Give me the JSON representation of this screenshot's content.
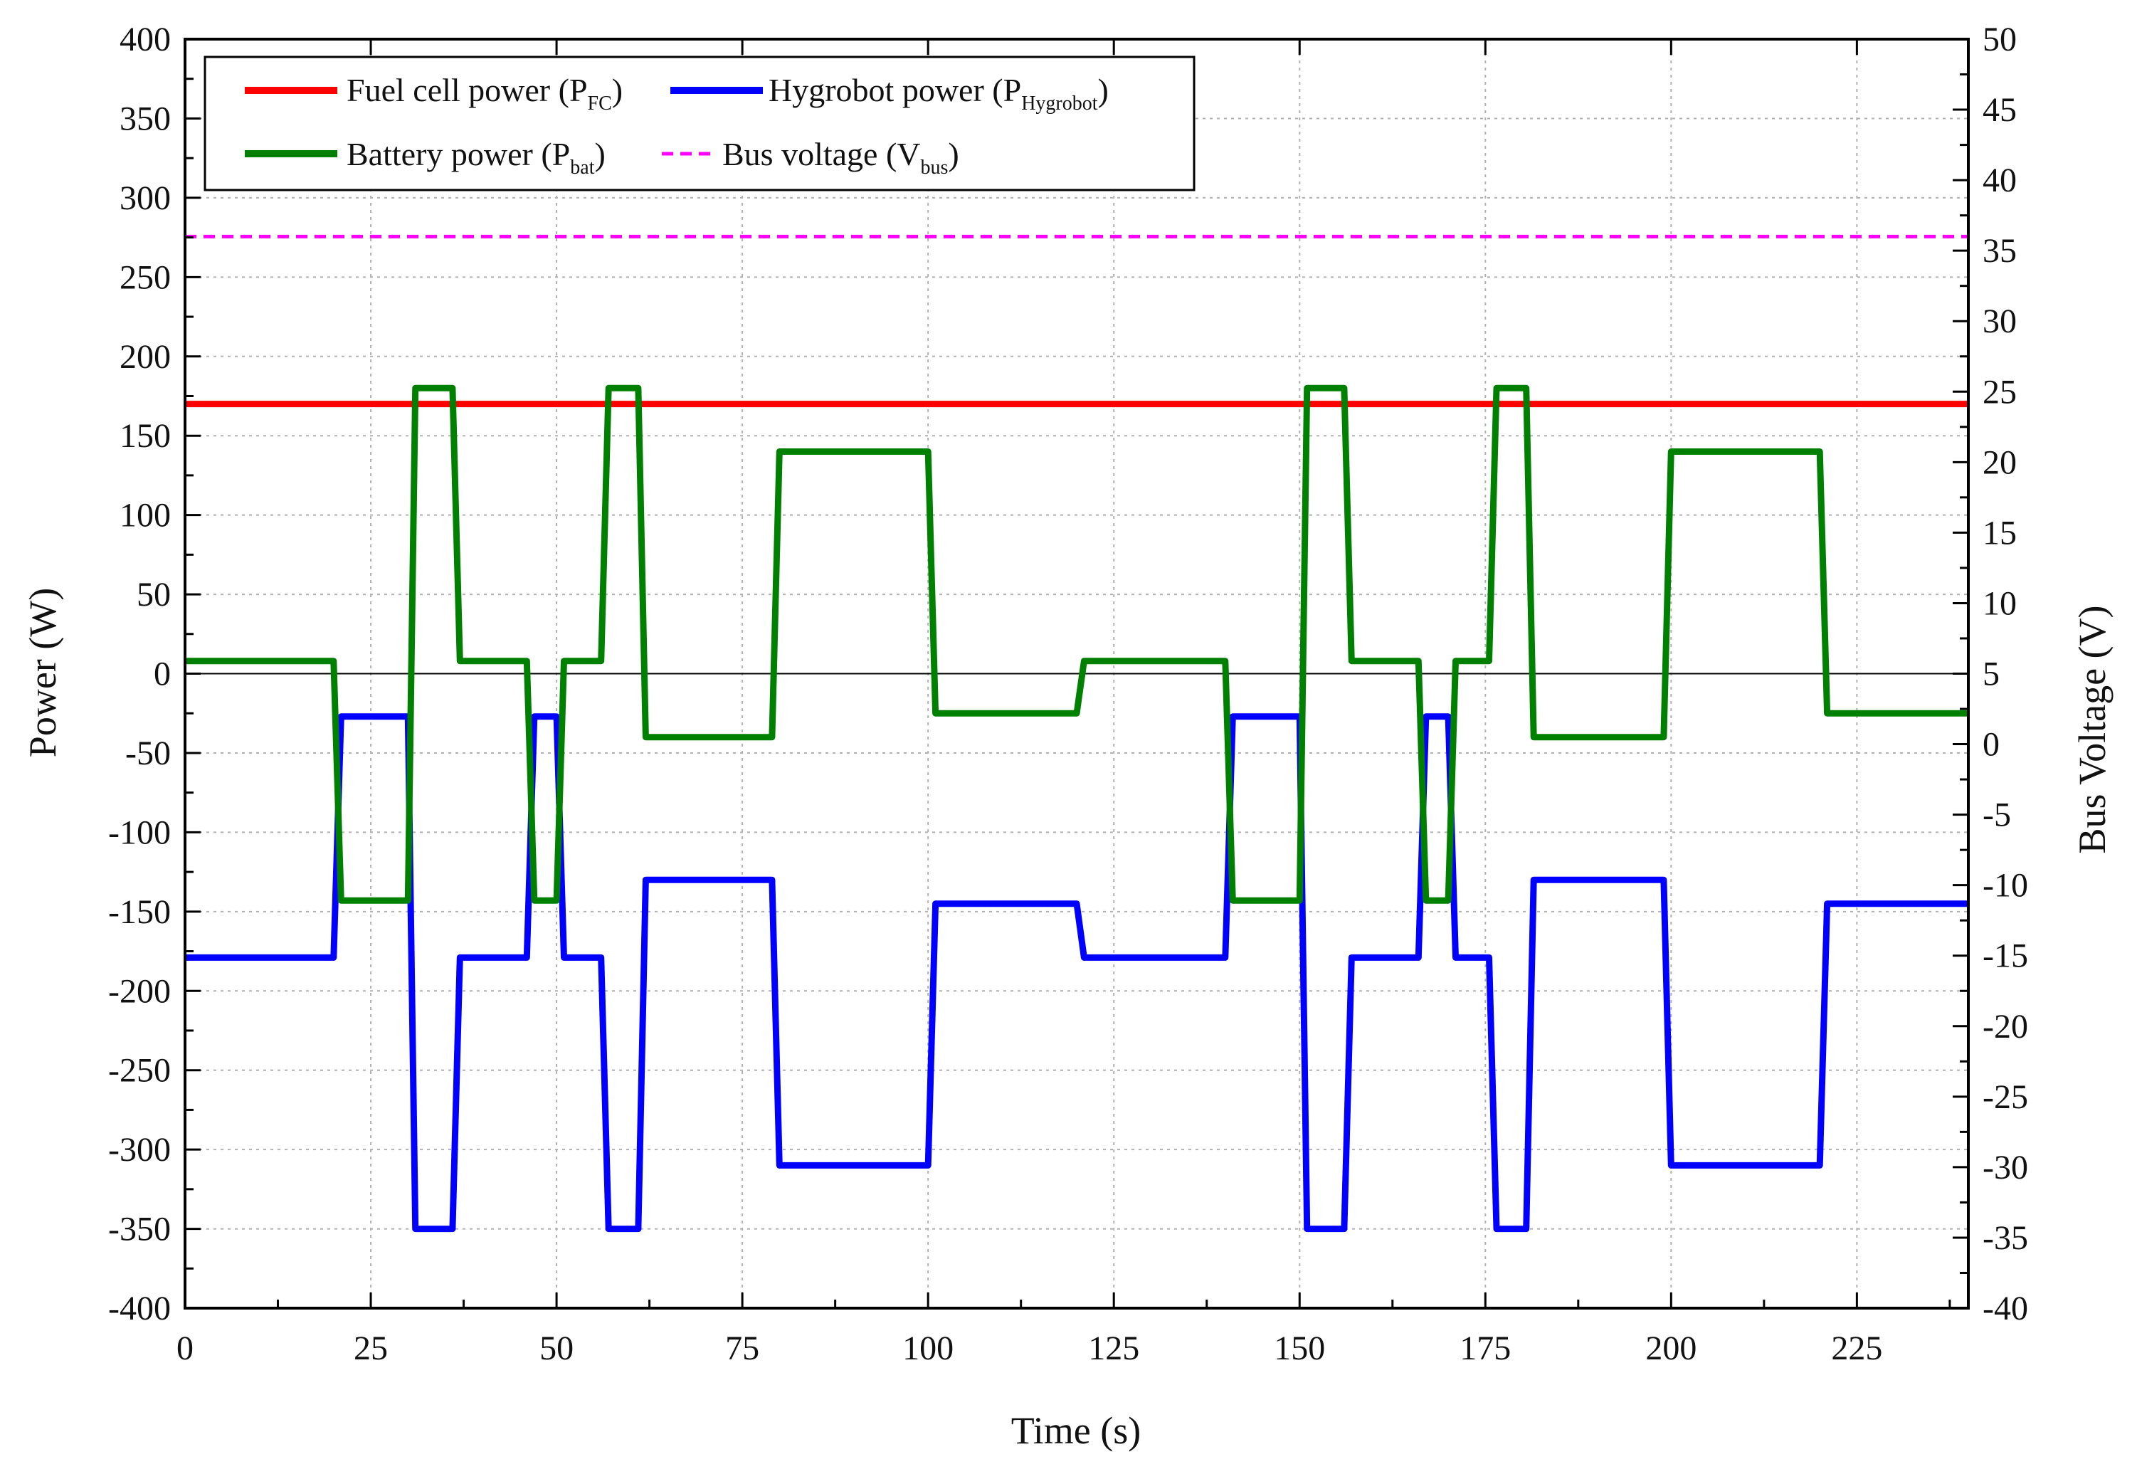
{
  "chart_data": {
    "type": "line",
    "title": "",
    "xlabel": "Time (s)",
    "ylabel": "Power (W)",
    "y2label": "Bus Voltage (V)",
    "xlim": [
      0,
      240
    ],
    "ylim": [
      -400,
      400
    ],
    "y2lim": [
      -40,
      50
    ],
    "x_ticks": [
      0,
      25,
      50,
      75,
      100,
      125,
      150,
      175,
      200,
      225
    ],
    "y_ticks": [
      -400,
      -350,
      -300,
      -250,
      -200,
      -150,
      -100,
      -50,
      0,
      50,
      100,
      150,
      200,
      250,
      300,
      350,
      400
    ],
    "y2_ticks": [
      -40,
      -35,
      -30,
      -25,
      -20,
      -15,
      -10,
      -5,
      0,
      5,
      10,
      15,
      20,
      25,
      30,
      35,
      40,
      45,
      50
    ],
    "grid": true,
    "legend_position": "top-left",
    "legend_title_rows": [
      [
        {
          "series": "fc",
          "label": "Fuel cell power (P",
          "sub": "FC",
          "close": ")"
        },
        {
          "series": "hyg",
          "label": "Hygrobot power (P",
          "sub": "Hygrobot",
          "close": ")"
        }
      ],
      [
        {
          "series": "bat",
          "label": "Battery power (P",
          "sub": "bat",
          "close": ")"
        },
        {
          "series": "vbus",
          "label": "Bus voltage (V",
          "sub": "bus",
          "close": ")"
        }
      ]
    ],
    "series": [
      {
        "id": "fc",
        "name": "Fuel cell power (PFC)",
        "axis": "left",
        "color": "#ff0000",
        "style": "solid",
        "x": [
          0,
          240
        ],
        "y": [
          170,
          170
        ]
      },
      {
        "id": "hyg",
        "name": "Hygrobot power (PHygrobot)",
        "axis": "left",
        "color": "#0000ff",
        "style": "solid",
        "x": [
          0,
          20,
          21,
          30,
          31,
          36,
          37,
          46,
          47,
          50,
          51,
          56,
          57,
          61,
          62,
          79,
          80,
          100,
          101,
          120,
          121,
          140,
          141,
          150,
          151,
          156,
          157,
          166,
          167,
          170,
          171,
          175.5,
          176.5,
          180.5,
          181.5,
          199,
          200,
          220,
          221,
          240
        ],
        "y": [
          -179,
          -179,
          -27,
          -27,
          -350,
          -350,
          -179,
          -179,
          -27,
          -27,
          -179,
          -179,
          -350,
          -350,
          -130,
          -130,
          -310,
          -310,
          -145,
          -145,
          -179,
          -179,
          -27,
          -27,
          -350,
          -350,
          -179,
          -179,
          -27,
          -27,
          -179,
          -179,
          -350,
          -350,
          -130,
          -130,
          -310,
          -310,
          -145,
          -145
        ]
      },
      {
        "id": "bat",
        "name": "Battery power (Pbat)",
        "axis": "left",
        "color": "#008000",
        "style": "solid",
        "x": [
          0,
          20,
          21,
          30,
          31,
          36,
          37,
          46,
          47,
          50,
          51,
          56,
          57,
          61,
          62,
          79,
          80,
          100,
          101,
          120,
          121,
          140,
          141,
          150,
          151,
          156,
          157,
          166,
          167,
          170,
          171,
          175.5,
          176.5,
          180.5,
          181.5,
          199,
          200,
          220,
          221,
          240
        ],
        "y": [
          8,
          8,
          -143,
          -143,
          180,
          180,
          8,
          8,
          -143,
          -143,
          8,
          8,
          180,
          180,
          -40,
          -40,
          140,
          140,
          -25,
          -25,
          8,
          8,
          -143,
          -143,
          180,
          180,
          8,
          8,
          -143,
          -143,
          8,
          8,
          180,
          180,
          -40,
          -40,
          140,
          140,
          -25,
          -25
        ]
      },
      {
        "id": "vbus",
        "name": "Bus voltage (Vbus)",
        "axis": "right",
        "color": "#ff00ff",
        "style": "dashed",
        "x": [
          0,
          240
        ],
        "y": [
          36,
          36
        ]
      }
    ]
  }
}
